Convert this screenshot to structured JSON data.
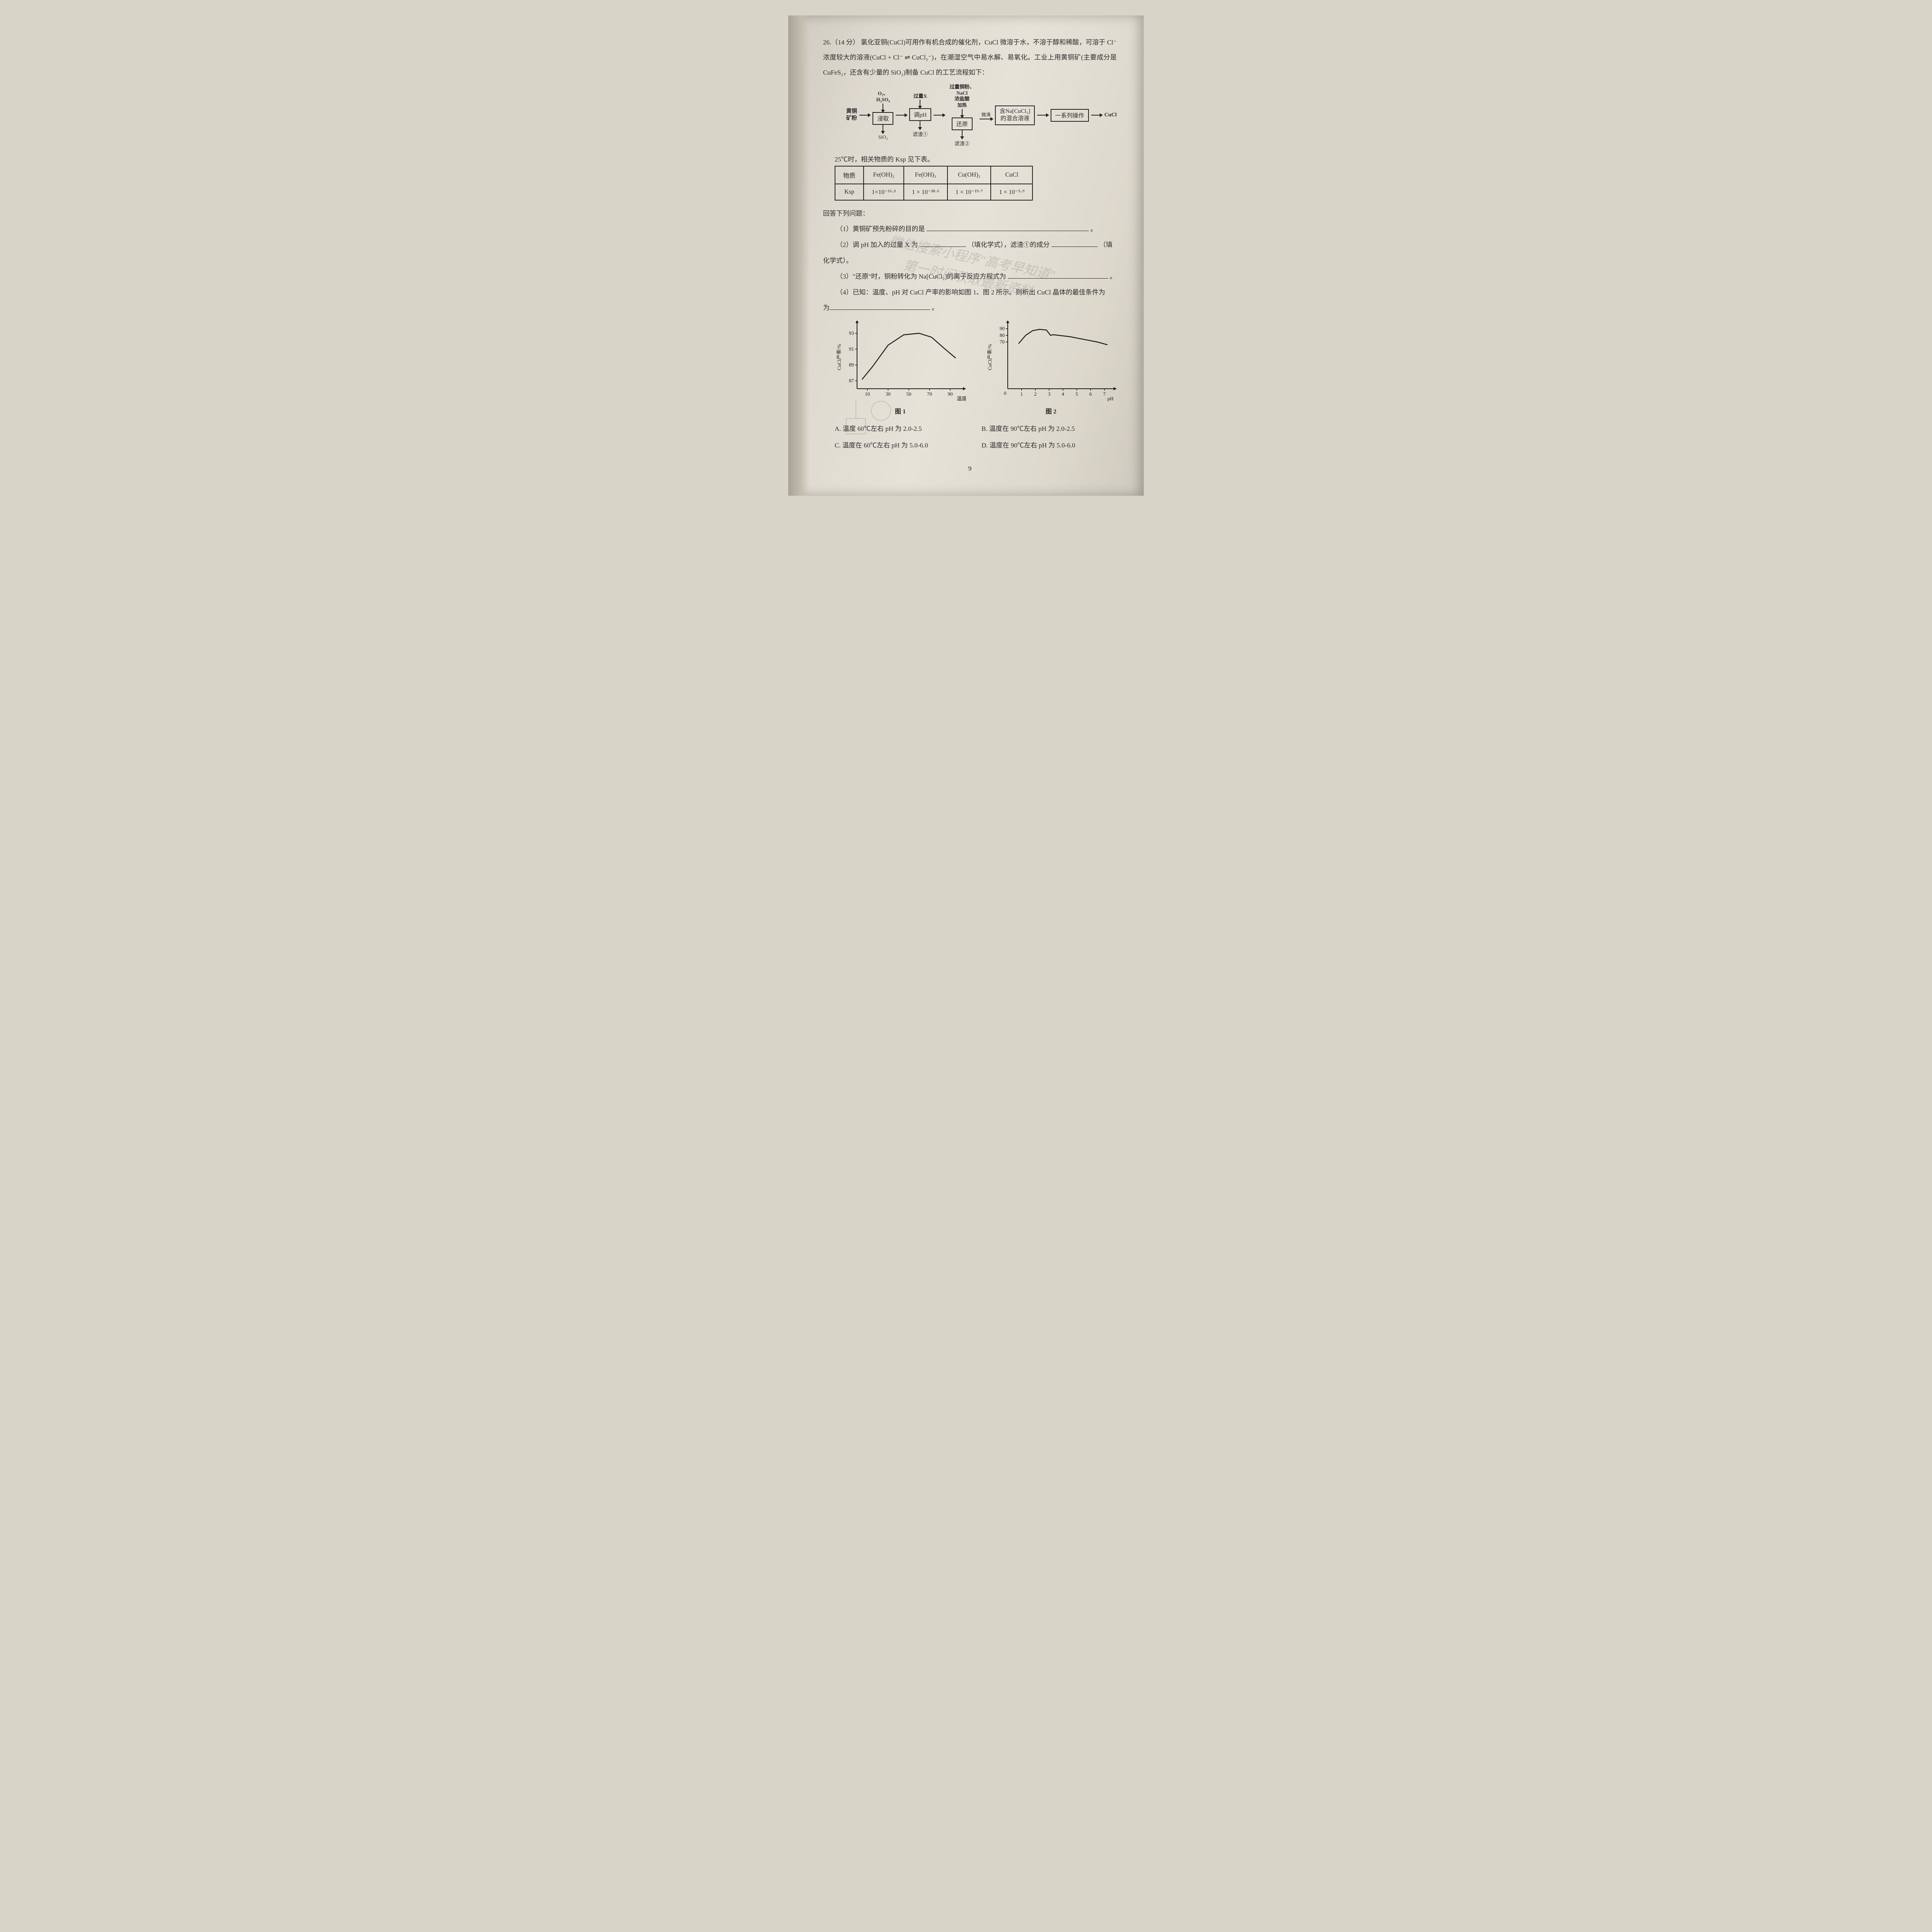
{
  "q_num": "26.（14 分）",
  "intro_1": "氯化亚铜(CuCl)可用作有机合成的催化剂，CuCl 微溶于水，不溶于醇和稀酸，可溶于 Cl⁻浓度较大的溶液(CuCl + Cl⁻ ⇌ CuCl₂⁻)，在潮湿空气中易水解、易氧化。工业上用黄铜矿(主要成分是 CuFeS₂，还含有少量的 SiO₂)制备 CuCl 的工艺流程如下：",
  "flow": {
    "input": "黄铜\n矿粉",
    "reagent1": "O₂、H₂SO₄",
    "step1": "浸取",
    "down_out1": "SiO₂",
    "reagent2": "过量X",
    "step2": "调pH",
    "down_out2": "滤渣①",
    "reagent3_a": "过量铜粉、NaCl",
    "reagent3_b": "浓盐酸",
    "reagent3_c": "加热",
    "step3": "还原",
    "down_out3": "滤渣②",
    "mid_label": "微沸",
    "step4_a": "含Na[CuCl₂]",
    "step4_b": "的混合溶液",
    "step5": "一系列操作",
    "output": "CuCl"
  },
  "ksp_intro": "25℃时，相关物质的 Ksp 见下表。",
  "ksp_table": {
    "header": [
      "物质",
      "Fe(OH)₂",
      "Fe(OH)₃",
      "Cu(OH)₂",
      "CuCl"
    ],
    "row_label": "Ksp",
    "values": [
      "1×10⁻¹⁶·³",
      "1 × 10⁻³⁸·⁶",
      "1 × 10⁻¹⁹·⁷",
      "1 × 10⁻⁵·⁹"
    ]
  },
  "answer_intro": "回答下列问题：",
  "q1": "（1）黄铜矿预先粉碎的目的是",
  "q1_end": "。",
  "q2_a": "（2）调 pH 加入的过量 X 为",
  "q2_mid": "（填化学式），滤渣①的成分",
  "q2_end": "（填化学式）。",
  "q3_a": "（3）\"还原\"时，铜粉转化为 Na[CuCl₂]的离子反应方程式为",
  "q3_end": "。",
  "q4_a": "（4）已知：温度、pH 对 CuCl 产率的影响如图 1、图 2 所示。则析出 CuCl 晶体的最佳条件为",
  "q4_end": "。",
  "watermark_1": "微信搜索小程序\"高考早知道\"",
  "watermark_2": "第一时间获取最新资料",
  "chart1": {
    "caption": "图 1",
    "ylabel": "CuCl产率/%",
    "xlabel": "温度/℃",
    "xticks": [
      10,
      30,
      50,
      70,
      90
    ],
    "yticks": [
      87,
      89,
      91,
      93
    ],
    "xlim": [
      0,
      100
    ],
    "ylim": [
      86,
      94
    ],
    "points": [
      [
        5,
        87.2
      ],
      [
        15,
        88.8
      ],
      [
        30,
        91.5
      ],
      [
        45,
        92.8
      ],
      [
        60,
        93.0
      ],
      [
        72,
        92.5
      ],
      [
        85,
        91.0
      ],
      [
        95,
        89.9
      ]
    ],
    "line_color": "#1a1a1a",
    "axis_color": "#1a1a1a",
    "bg": "transparent",
    "line_width": 2.4,
    "font_size": 13
  },
  "chart2": {
    "caption": "图 2",
    "ylabel": "CuCl产率/%",
    "xlabel": "pH",
    "xticks": [
      1,
      2,
      3,
      4,
      5,
      6,
      7
    ],
    "yticks": [
      70,
      80,
      90
    ],
    "xlim": [
      0,
      7.5
    ],
    "ylim": [
      0,
      95
    ],
    "points": [
      [
        0.8,
        68
      ],
      [
        1.3,
        80
      ],
      [
        1.8,
        87
      ],
      [
        2.3,
        89
      ],
      [
        2.8,
        88
      ],
      [
        3.1,
        80
      ],
      [
        3.3,
        81
      ],
      [
        3.7,
        80
      ],
      [
        4.5,
        78
      ],
      [
        5.5,
        74
      ],
      [
        6.5,
        70
      ],
      [
        7.2,
        66
      ]
    ],
    "line_color": "#1a1a1a",
    "axis_color": "#1a1a1a",
    "bg": "transparent",
    "line_width": 2.4,
    "font_size": 13
  },
  "options": {
    "A": "A. 温度 60℃左右 pH 为 2.0-2.5",
    "B": "B. 温度在 90℃左右 pH 为 2.0-2.5",
    "C": "C. 温度在 60℃左右 pH 为 5.0-6.0",
    "D": "D. 温度在 90℃左右 pH 为 5.0-6.0"
  },
  "page_number": "9"
}
